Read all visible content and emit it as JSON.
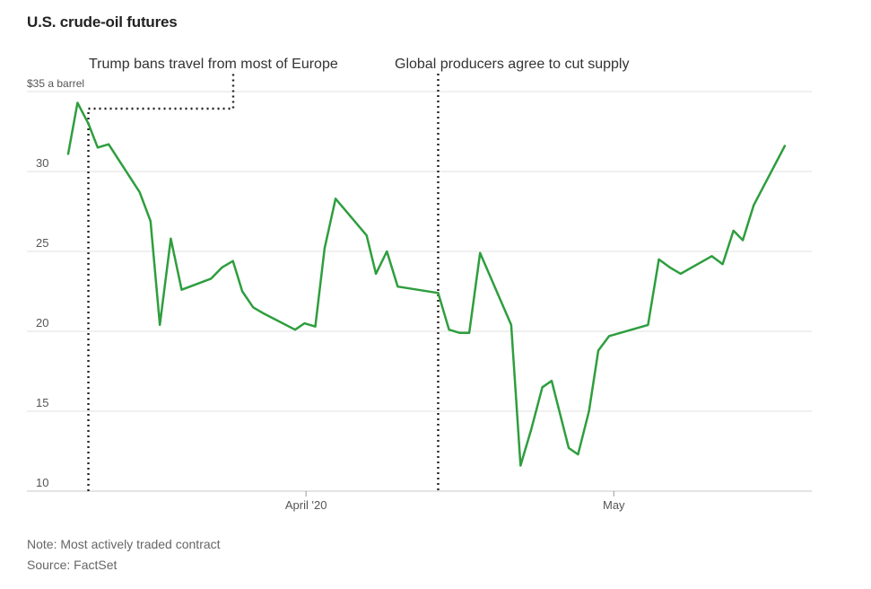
{
  "chart_data": {
    "type": "line",
    "title": "U.S. crude-oil futures",
    "ylabel": "$35 a barrel",
    "ylim": [
      10,
      35
    ],
    "yticks": [
      {
        "value": 35,
        "label": "$35 a barrel"
      },
      {
        "value": 30,
        "label": "30"
      },
      {
        "value": 25,
        "label": "25"
      },
      {
        "value": 20,
        "label": "20"
      },
      {
        "value": 15,
        "label": "15"
      },
      {
        "value": 10,
        "label": "10"
      }
    ],
    "xlim": [
      0,
      46.5
    ],
    "xticks": [
      {
        "value": 15.3,
        "label": "April '20"
      },
      {
        "value": 35.1,
        "label": "May"
      }
    ],
    "series": [
      {
        "name": "U.S. crude-oil futures",
        "color": "#2e9e3e",
        "x": [
          0,
          0.6,
          1.3,
          1.9,
          2.6,
          4.6,
          5.3,
          5.9,
          6.6,
          7.3,
          9.2,
          9.9,
          10.6,
          11.2,
          11.9,
          12.6,
          14.6,
          15.2,
          15.9,
          16.5,
          17.2,
          19.2,
          19.8,
          20.5,
          21.2,
          23.8,
          24.5,
          25.2,
          25.8,
          26.5,
          28.5,
          29.1,
          29.8,
          30.5,
          31.1,
          32.2,
          32.8,
          33.5,
          34.1,
          34.8,
          37.3,
          38.0,
          38.7,
          39.4,
          41.4,
          42.1,
          42.8,
          43.4,
          44.1,
          46.1
        ],
        "values": [
          31.1,
          34.3,
          33.0,
          31.5,
          31.7,
          28.7,
          26.9,
          20.4,
          25.8,
          22.6,
          23.3,
          24.0,
          24.4,
          22.5,
          21.5,
          21.1,
          20.1,
          20.5,
          20.3,
          25.2,
          28.3,
          26.0,
          23.6,
          25.0,
          22.8,
          22.4,
          20.1,
          19.9,
          19.9,
          24.9,
          20.4,
          11.6,
          13.9,
          16.5,
          16.9,
          12.7,
          12.3,
          15.0,
          18.8,
          19.7,
          20.4,
          24.5,
          24.0,
          23.6,
          24.7,
          24.2,
          26.3,
          25.7,
          27.9,
          31.6
        ]
      }
    ],
    "annotations": [
      {
        "text": "Trump bans travel from most of Europe",
        "x": 1.3
      },
      {
        "text": "Global producers agree to cut supply",
        "x": 23.8
      }
    ],
    "note": "Note: Most actively traded contract",
    "source": "Source: FactSet",
    "grid": true
  },
  "colors": {
    "line": "#2e9e3e",
    "grid": "#e2e2e2",
    "axis": "#999999",
    "annotation": "#222222"
  }
}
